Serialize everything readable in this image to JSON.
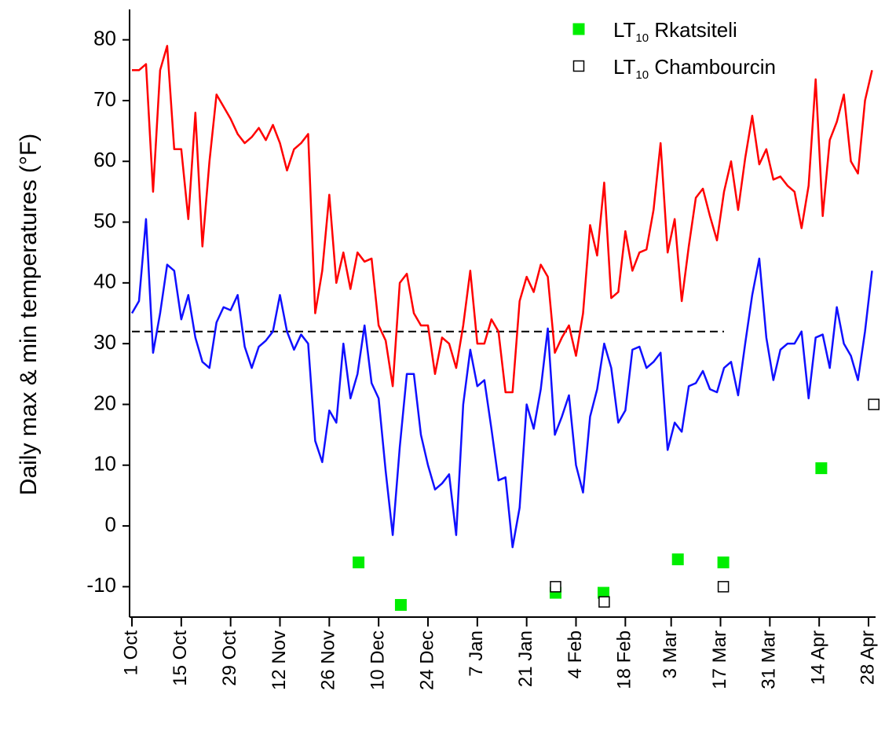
{
  "chart_data": {
    "type": "line",
    "y_label": "Daily max & min temperatures (°F)",
    "xlim": [
      0,
      211
    ],
    "ylim": [
      -15,
      85
    ],
    "yticks": [
      -10,
      0,
      10,
      20,
      30,
      40,
      50,
      60,
      70,
      80
    ],
    "xticks": [
      {
        "value": 0,
        "label": "1 Oct"
      },
      {
        "value": 14,
        "label": "15 Oct"
      },
      {
        "value": 28,
        "label": "29 Oct"
      },
      {
        "value": 42,
        "label": "12 Nov"
      },
      {
        "value": 56,
        "label": "26 Nov"
      },
      {
        "value": 70,
        "label": "10 Dec"
      },
      {
        "value": 84,
        "label": "24 Dec"
      },
      {
        "value": 98,
        "label": "7 Jan"
      },
      {
        "value": 112,
        "label": "21 Jan"
      },
      {
        "value": 126,
        "label": "4 Feb"
      },
      {
        "value": 140,
        "label": "18 Feb"
      },
      {
        "value": 153,
        "label": "3 Mar"
      },
      {
        "value": 167,
        "label": "17 Mar"
      },
      {
        "value": 181,
        "label": "31 Mar"
      },
      {
        "value": 195,
        "label": "14 Apr"
      },
      {
        "value": 209,
        "label": "28 Apr"
      }
    ],
    "grid": false,
    "legend_loc": "upper right",
    "reference_line": {
      "y": 32,
      "x": [
        0,
        168
      ],
      "color": "#000000",
      "dashed": true
    },
    "x": [
      0,
      2,
      4,
      6,
      8,
      10,
      12,
      14,
      16,
      18,
      20,
      22,
      24,
      26,
      28,
      30,
      32,
      34,
      36,
      38,
      40,
      42,
      44,
      46,
      48,
      50,
      52,
      54,
      56,
      58,
      60,
      62,
      64,
      66,
      68,
      70,
      72,
      74,
      76,
      78,
      80,
      82,
      84,
      86,
      88,
      90,
      92,
      94,
      96,
      98,
      100,
      102,
      104,
      106,
      108,
      110,
      112,
      114,
      116,
      118,
      120,
      122,
      124,
      126,
      128,
      130,
      132,
      134,
      136,
      138,
      140,
      142,
      144,
      146,
      148,
      150,
      152,
      154,
      156,
      158,
      160,
      162,
      164,
      166,
      168,
      170,
      172,
      174,
      176,
      178,
      180,
      182,
      184,
      186,
      188,
      190,
      192,
      194,
      196,
      198,
      200,
      202,
      204,
      206,
      208,
      210
    ],
    "series": [
      {
        "type": "line",
        "color": "#ff0000",
        "values": [
          75,
          75,
          76,
          55,
          75,
          79,
          62,
          62,
          50.5,
          68,
          46,
          60,
          71,
          69,
          67,
          64.5,
          63,
          64,
          65.5,
          63.5,
          66,
          63,
          58.5,
          62,
          63,
          64.5,
          35,
          42,
          54.5,
          40,
          45,
          39,
          45,
          43.5,
          44,
          33,
          30.5,
          23,
          40,
          41.5,
          35,
          33,
          33,
          25,
          31,
          30,
          26,
          33,
          42,
          30,
          30,
          34,
          32,
          22,
          22,
          37,
          41,
          38.5,
          43,
          41,
          28.5,
          31,
          33,
          28,
          35,
          49.5,
          44.5,
          56.5,
          37.5,
          38.5,
          48.5,
          42,
          45,
          45.5,
          52,
          63,
          45,
          50.5,
          37,
          46,
          54,
          55.5,
          51,
          47,
          55,
          60,
          52,
          60.5,
          67.5,
          59.5,
          62,
          57,
          57.5,
          56,
          55,
          49,
          56,
          73.5,
          51,
          63.5,
          66.5,
          71,
          60,
          58,
          70,
          75
        ]
      },
      {
        "type": "line",
        "color": "#1010ff",
        "values": [
          35,
          37,
          50.5,
          28.5,
          35,
          43,
          42,
          34,
          38,
          31,
          27,
          26,
          33.5,
          36,
          35.5,
          38,
          29.5,
          26,
          29.5,
          30.5,
          32,
          38,
          32,
          29,
          31.5,
          30,
          14,
          10.5,
          19,
          17,
          30,
          21,
          25,
          33,
          23.5,
          21,
          9,
          -1.5,
          13,
          25,
          25,
          15,
          10,
          6,
          7,
          8.5,
          -1.5,
          20,
          29,
          23,
          24,
          16,
          7.5,
          8,
          -3.5,
          3,
          20,
          16,
          22.5,
          32.5,
          15,
          18,
          21.5,
          10,
          5.5,
          18,
          22.5,
          30,
          26,
          17,
          19,
          29,
          29.5,
          26,
          27,
          28.5,
          12.5,
          17,
          15.5,
          23,
          23.5,
          25.5,
          22.5,
          22,
          26,
          27,
          21.5,
          30,
          38,
          44,
          31,
          24,
          29,
          30,
          30,
          32,
          21,
          31,
          31.5,
          26,
          36,
          30,
          28,
          24,
          32,
          42
        ]
      },
      {
        "type": "scatter",
        "name": "LT10 Rkatsiteli",
        "color": "#00ee00",
        "marker": "filled",
        "x": [
          64.3,
          76.3,
          120.2,
          133.8,
          154.9,
          167.8,
          195.6
        ],
        "values": [
          -6,
          -13,
          -11,
          -11,
          -5.5,
          -6,
          9.5
        ]
      },
      {
        "type": "scatter",
        "name": "LT10 Chambourcin",
        "color": "#000000",
        "marker": "open",
        "x": [
          120.2,
          134,
          167.8,
          210.5
        ],
        "values": [
          -10,
          -12.5,
          -10,
          20
        ]
      }
    ]
  }
}
